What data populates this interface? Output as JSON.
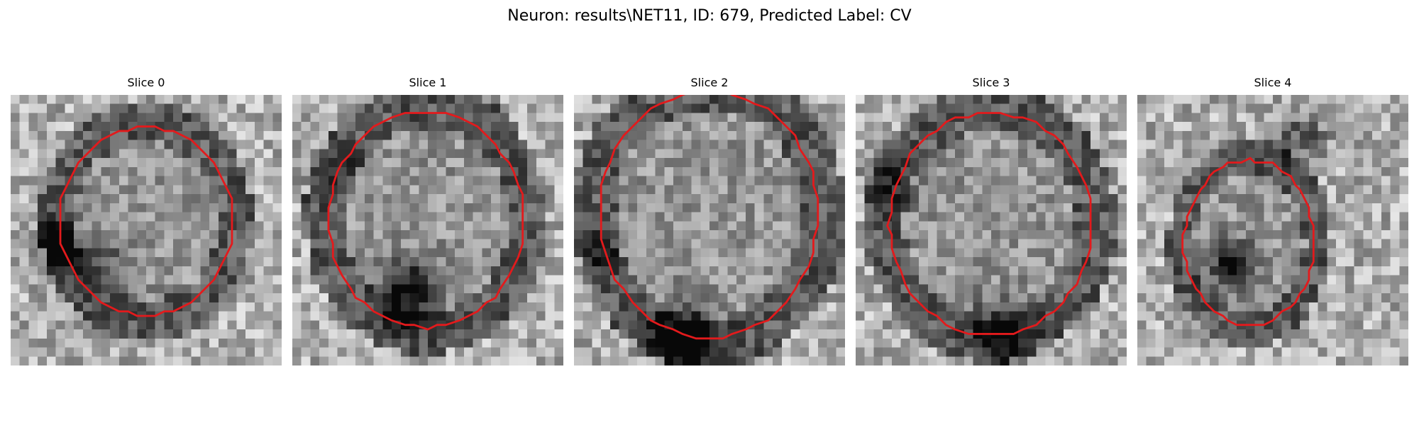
{
  "figure": {
    "title": "Neuron: results\\NET11, ID: 679, Predicted Label: CV"
  },
  "panels": [
    {
      "title": "Slice 0"
    },
    {
      "title": "Slice 1"
    },
    {
      "title": "Slice 2"
    },
    {
      "title": "Slice 3"
    },
    {
      "title": "Slice 4"
    }
  ],
  "colors": {
    "contour": "#e31a1c",
    "background": "#ffffff"
  }
}
